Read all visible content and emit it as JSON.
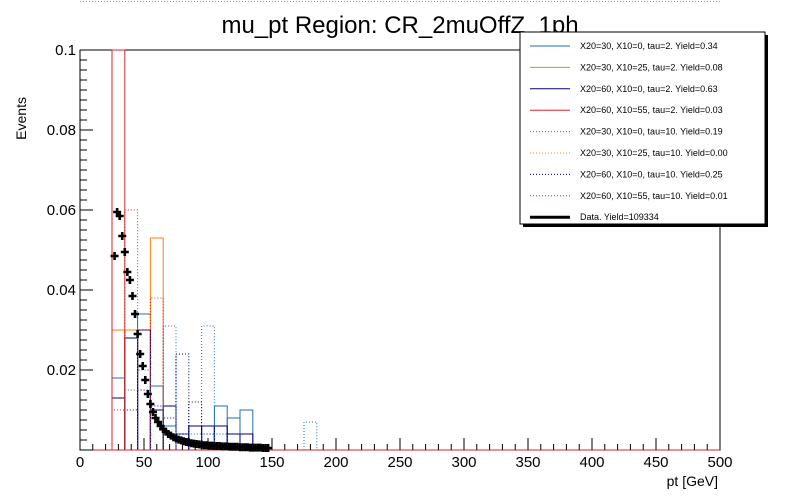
{
  "chart_data": {
    "type": "histogram",
    "title": "mu_pt Region: CR_2muOffZ_1ph",
    "xlabel": "pt [GeV]",
    "ylabel": "Events",
    "xlim": [
      0,
      500
    ],
    "ylim": [
      0,
      0.1
    ],
    "x_ticks": [
      "0",
      "50",
      "100",
      "150",
      "200",
      "250",
      "300",
      "350",
      "400",
      "450",
      "500"
    ],
    "y_ticks": [
      "0.02",
      "0.04",
      "0.06",
      "0.08",
      "0.1"
    ],
    "bin_width": 10,
    "legend_position": "top-right",
    "series": [
      {
        "name": "X20=30, X10=0, tau=2. Yield=0.34",
        "color": "#1f6fb0",
        "style": "solid",
        "bins": [
          [
            25,
            0.018
          ],
          [
            35,
            0.028
          ],
          [
            45,
            0.034
          ],
          [
            55,
            0.016
          ],
          [
            65,
            0.006
          ],
          [
            75,
            0.004
          ],
          [
            85,
            0.006
          ],
          [
            95,
            0.006
          ],
          [
            105,
            0.011
          ],
          [
            115,
            0.008
          ],
          [
            125,
            0.01
          ]
        ]
      },
      {
        "name": "X20=30, X10=25, tau=2. Yield=0.08",
        "color": "#ff7f0e",
        "style": "solid",
        "bins": [
          [
            25,
            0.03
          ],
          [
            35,
            0.03
          ],
          [
            45,
            0.0
          ],
          [
            55,
            0.053
          ]
        ]
      },
      {
        "name": "X20=60, X10=0, tau=2. Yield=0.63",
        "color": "#00007f",
        "style": "solid",
        "bins": [
          [
            25,
            0.013
          ],
          [
            35,
            0.028
          ],
          [
            45,
            0.03
          ],
          [
            55,
            0.01
          ],
          [
            65,
            0.011
          ],
          [
            75,
            0.004
          ],
          [
            85,
            0.006
          ],
          [
            95,
            0.006
          ],
          [
            105,
            0.006
          ],
          [
            115,
            0.004
          ],
          [
            125,
            0.004
          ]
        ]
      },
      {
        "name": "X20=60, X10=55, tau=2. Yield=0.03",
        "color": "#d62728",
        "style": "solid",
        "bins": [
          [
            25,
            0.1
          ]
        ]
      },
      {
        "name": "X20=30, X10=0, tau=10. Yield=0.19",
        "color": "#1f6fb0",
        "style": "dotted",
        "bins": [
          [
            35,
            0.015
          ],
          [
            45,
            0.02
          ],
          [
            55,
            0.016
          ],
          [
            65,
            0.031
          ],
          [
            75,
            0.004
          ],
          [
            85,
            0.004
          ],
          [
            95,
            0.031
          ],
          [
            105,
            0.004
          ],
          [
            175,
            0.007
          ]
        ]
      },
      {
        "name": "X20=30, X10=25, tau=10. Yield=0.00",
        "color": "#ff7f0e",
        "style": "dotted",
        "bins": []
      },
      {
        "name": "X20=60, X10=0, tau=10. Yield=0.25",
        "color": "#00007f",
        "style": "dotted",
        "bins": [
          [
            35,
            0.01
          ],
          [
            45,
            0.015
          ],
          [
            55,
            0.011
          ],
          [
            65,
            0.008
          ],
          [
            75,
            0.024
          ],
          [
            85,
            0.012
          ],
          [
            95,
            0.004
          ]
        ]
      },
      {
        "name": "X20=60, X10=55, tau=10. Yield=0.01",
        "color": "#d62728",
        "style": "dotted",
        "bins": [
          [
            25,
            0.01
          ],
          [
            35,
            0.06
          ],
          [
            45,
            0.03
          ],
          [
            55,
            0.038
          ]
        ]
      },
      {
        "name": "Data. Yield=109334",
        "color": "#000000",
        "style": "points",
        "points": [
          [
            27,
            0.0485
          ],
          [
            29,
            0.0595
          ],
          [
            31,
            0.0585
          ],
          [
            33,
            0.0535
          ],
          [
            35,
            0.0495
          ],
          [
            37,
            0.0445
          ],
          [
            39,
            0.0425
          ],
          [
            41,
            0.0385
          ],
          [
            43,
            0.034
          ],
          [
            45,
            0.029
          ],
          [
            47,
            0.024
          ],
          [
            49,
            0.021
          ],
          [
            51,
            0.0175
          ],
          [
            53,
            0.014
          ],
          [
            55,
            0.0115
          ],
          [
            57,
            0.0095
          ],
          [
            59,
            0.008
          ],
          [
            61,
            0.007
          ],
          [
            63,
            0.006
          ],
          [
            65,
            0.0052
          ],
          [
            67,
            0.0046
          ],
          [
            69,
            0.004
          ],
          [
            71,
            0.0036
          ],
          [
            73,
            0.0032
          ],
          [
            75,
            0.0029
          ],
          [
            77,
            0.0026
          ],
          [
            79,
            0.0024
          ],
          [
            81,
            0.0022
          ],
          [
            83,
            0.002
          ],
          [
            85,
            0.0019
          ],
          [
            87,
            0.0017
          ],
          [
            89,
            0.0016
          ],
          [
            91,
            0.0015
          ],
          [
            93,
            0.0014
          ],
          [
            95,
            0.0013
          ],
          [
            97,
            0.0012
          ],
          [
            99,
            0.0012
          ],
          [
            101,
            0.0011
          ],
          [
            103,
            0.0011
          ],
          [
            105,
            0.001
          ],
          [
            107,
            0.001
          ],
          [
            109,
            0.001
          ],
          [
            111,
            0.0009
          ],
          [
            113,
            0.0009
          ],
          [
            115,
            0.0009
          ],
          [
            117,
            0.0008
          ],
          [
            119,
            0.0008
          ],
          [
            121,
            0.0008
          ],
          [
            123,
            0.0008
          ],
          [
            125,
            0.0007
          ],
          [
            127,
            0.0007
          ],
          [
            129,
            0.0007
          ],
          [
            131,
            0.0007
          ],
          [
            133,
            0.0006
          ],
          [
            135,
            0.0006
          ],
          [
            137,
            0.0006
          ],
          [
            139,
            0.0006
          ],
          [
            141,
            0.0006
          ],
          [
            143,
            0.0005
          ],
          [
            145,
            0.0005
          ],
          [
            147,
            0.0005
          ]
        ]
      }
    ]
  }
}
